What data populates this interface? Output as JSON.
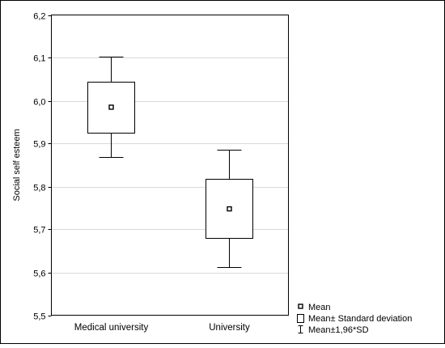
{
  "chart_data": {
    "type": "box",
    "ylabel": "Social self esteem",
    "xlabel": "",
    "ylim": [
      5.5,
      6.2
    ],
    "yticks": [
      "5,5",
      "5,6",
      "5,7",
      "5,8",
      "5,9",
      "6,0",
      "6,1",
      "6,2"
    ],
    "grid": true,
    "categories": [
      "Medical university",
      "University"
    ],
    "groups": [
      {
        "category": "Medical university",
        "mean": 5.985,
        "box_low": 5.925,
        "box_high": 6.045,
        "whisker_low": 5.868,
        "whisker_high": 6.103
      },
      {
        "category": "University",
        "mean": 5.748,
        "box_low": 5.68,
        "box_high": 5.818,
        "whisker_low": 5.613,
        "whisker_high": 5.885
      }
    ],
    "legend": {
      "placement": "bottom-right",
      "entries": [
        "Mean",
        "Mean± Standard deviation",
        "Mean±1,96*SD"
      ]
    }
  }
}
